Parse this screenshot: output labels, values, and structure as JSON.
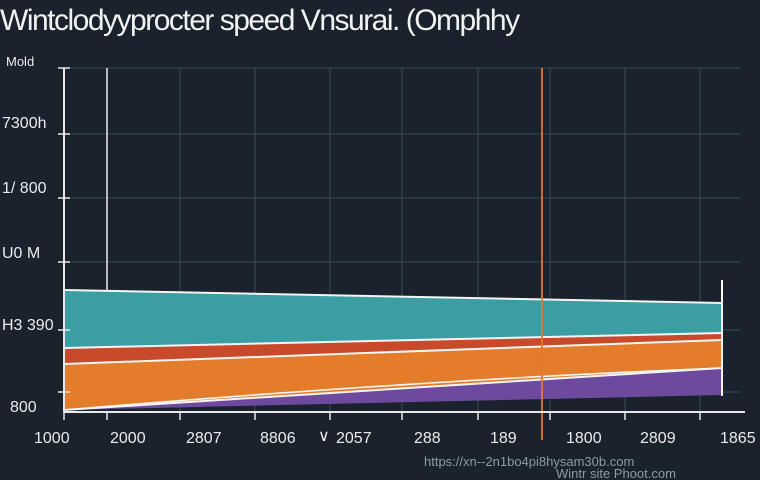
{
  "chart_data": {
    "type": "area",
    "title": "Wintclodyyprocter speed Vnsurai. (Omphhy",
    "ylabel": "Mold",
    "x_tick_labels": [
      "1000",
      "2000",
      "2807",
      "8806",
      "2057",
      "288",
      "189",
      "1800",
      "2809",
      "1865"
    ],
    "x_tick_marker": "∨",
    "y_tick_labels": [
      "7300h",
      "1/ 800",
      "U0 M",
      "H3 390",
      "800"
    ],
    "grid": true,
    "reference_line_color": "#e2782f",
    "series": [
      {
        "color": "#3b9ea3",
        "top": [
          290,
          303
        ],
        "bottom": [
          348,
          333
        ]
      },
      {
        "color": "#c9492b",
        "top": [
          348,
          333
        ],
        "bottom": [
          364,
          340
        ]
      },
      {
        "color": "#e37d2b",
        "top": [
          364,
          340
        ],
        "bottom": [
          410,
          368
        ]
      },
      {
        "color": "#6e4a9e",
        "top": [
          410,
          368
        ],
        "bottom": [
          410,
          395
        ]
      }
    ]
  },
  "watermark": "https://xn--2n1bo4pi8hysam30b.com",
  "watermark_overlay": "Wintr site Phoot.com"
}
